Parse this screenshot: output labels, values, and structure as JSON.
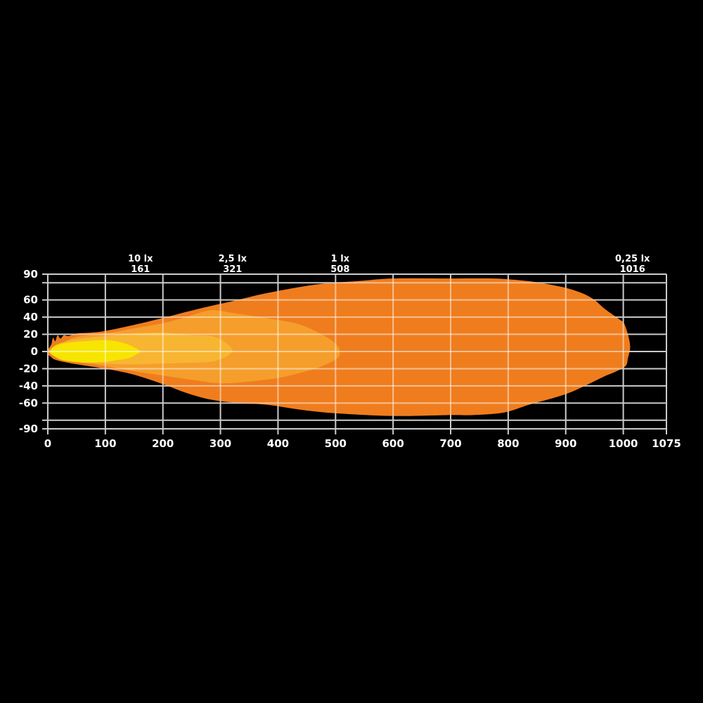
{
  "chart_data": {
    "type": "area",
    "title": "",
    "xlabel": "",
    "ylabel": "",
    "xlim": [
      0,
      1075
    ],
    "ylim": [
      -90,
      90
    ],
    "grid": true,
    "background": "#000000",
    "grid_color": "#cbcbcb",
    "grid_overlay_color": "rgba(255,255,255,0.5)",
    "text_color": "#ffffff",
    "x_grid_values": [
      0,
      100,
      200,
      300,
      400,
      500,
      600,
      700,
      800,
      900,
      1000,
      1075
    ],
    "y_grid_values": [
      -90,
      -80,
      -60,
      -40,
      -20,
      0,
      20,
      40,
      60,
      80,
      90
    ],
    "x_tick_labels": [
      {
        "v": 0,
        "label": "0"
      },
      {
        "v": 100,
        "label": "100"
      },
      {
        "v": 200,
        "label": "200"
      },
      {
        "v": 300,
        "label": "300"
      },
      {
        "v": 400,
        "label": "400"
      },
      {
        "v": 500,
        "label": "500"
      },
      {
        "v": 600,
        "label": "600"
      },
      {
        "v": 700,
        "label": "700"
      },
      {
        "v": 800,
        "label": "800"
      },
      {
        "v": 900,
        "label": "900"
      },
      {
        "v": 1000,
        "label": "1000"
      },
      {
        "v": 1075,
        "label": "1075"
      }
    ],
    "y_tick_labels": [
      {
        "v": 90,
        "label": "90"
      },
      {
        "v": 60,
        "label": "60"
      },
      {
        "v": 40,
        "label": "40"
      },
      {
        "v": 20,
        "label": "20"
      },
      {
        "v": 0,
        "label": "0"
      },
      {
        "v": -20,
        "label": "-20"
      },
      {
        "v": -40,
        "label": "-40"
      },
      {
        "v": -60,
        "label": "-60"
      },
      {
        "v": -90,
        "label": "-90"
      }
    ],
    "lux_markers": [
      {
        "label": "10 lx",
        "distance_label": "161",
        "distance": 161
      },
      {
        "label": "2,5 lx",
        "distance_label": "321",
        "distance": 321
      },
      {
        "label": "1 lx",
        "distance_label": "508",
        "distance": 508
      },
      {
        "label": "0,25 lx",
        "distance_label": "1016",
        "distance": 1016
      }
    ],
    "contours": [
      {
        "name": "contour-0-25-lx",
        "lux": 0.25,
        "max_distance": 1016,
        "color": "#ef7d1e",
        "points": [
          [
            0,
            2
          ],
          [
            6,
            8
          ],
          [
            9,
            16
          ],
          [
            13,
            12
          ],
          [
            17,
            19
          ],
          [
            22,
            15
          ],
          [
            28,
            19
          ],
          [
            36,
            18
          ],
          [
            51,
            21
          ],
          [
            75,
            22
          ],
          [
            100,
            24
          ],
          [
            150,
            31
          ],
          [
            200,
            39
          ],
          [
            240,
            46
          ],
          [
            283,
            53
          ],
          [
            330,
            60
          ],
          [
            381,
            68
          ],
          [
            466,
            78
          ],
          [
            540,
            82
          ],
          [
            600,
            85
          ],
          [
            700,
            85
          ],
          [
            772,
            85
          ],
          [
            800,
            84
          ],
          [
            845,
            81
          ],
          [
            894,
            75
          ],
          [
            928,
            68
          ],
          [
            950,
            60
          ],
          [
            967,
            50
          ],
          [
            992,
            38
          ],
          [
            1001,
            33
          ],
          [
            1008,
            20
          ],
          [
            1012,
            5
          ],
          [
            1008,
            -8
          ],
          [
            1004,
            -17
          ],
          [
            985,
            -24
          ],
          [
            967,
            -29
          ],
          [
            930,
            -41
          ],
          [
            894,
            -51
          ],
          [
            836,
            -62
          ],
          [
            793,
            -71
          ],
          [
            740,
            -74
          ],
          [
            700,
            -74
          ],
          [
            601,
            -75
          ],
          [
            503,
            -72
          ],
          [
            442,
            -68
          ],
          [
            381,
            -62
          ],
          [
            332,
            -60
          ],
          [
            283,
            -56
          ],
          [
            240,
            -48
          ],
          [
            200,
            -38
          ],
          [
            150,
            -27
          ],
          [
            100,
            -20
          ],
          [
            51,
            -15
          ],
          [
            15,
            -10
          ],
          [
            5,
            -6
          ],
          [
            0,
            -3
          ]
        ]
      },
      {
        "name": "contour-1-lx",
        "lux": 1,
        "max_distance": 508,
        "color": "#f59e2b",
        "points": [
          [
            3,
            2
          ],
          [
            20,
            8
          ],
          [
            50,
            17
          ],
          [
            100,
            21
          ],
          [
            150,
            27
          ],
          [
            200,
            33
          ],
          [
            240,
            40
          ],
          [
            283,
            48
          ],
          [
            320,
            45
          ],
          [
            350,
            42
          ],
          [
            406,
            36
          ],
          [
            440,
            31
          ],
          [
            470,
            22
          ],
          [
            495,
            12
          ],
          [
            507,
            2
          ],
          [
            503,
            -8
          ],
          [
            480,
            -16
          ],
          [
            454,
            -22
          ],
          [
            406,
            -30
          ],
          [
            350,
            -35
          ],
          [
            300,
            -37
          ],
          [
            250,
            -33
          ],
          [
            200,
            -28
          ],
          [
            150,
            -23
          ],
          [
            100,
            -17
          ],
          [
            50,
            -12
          ],
          [
            20,
            -6
          ],
          [
            3,
            -2
          ]
        ]
      },
      {
        "name": "contour-2-5-lx",
        "lux": 2.5,
        "max_distance": 321,
        "color": "#f8b532",
        "points": [
          [
            2,
            1
          ],
          [
            15,
            8
          ],
          [
            40,
            13
          ],
          [
            70,
            16
          ],
          [
            100,
            18
          ],
          [
            150,
            21
          ],
          [
            200,
            22
          ],
          [
            250,
            19
          ],
          [
            283,
            18
          ],
          [
            300,
            14
          ],
          [
            313,
            8
          ],
          [
            321,
            1
          ],
          [
            313,
            -5
          ],
          [
            300,
            -9
          ],
          [
            283,
            -12
          ],
          [
            250,
            -13
          ],
          [
            200,
            -14
          ],
          [
            150,
            -15
          ],
          [
            100,
            -14
          ],
          [
            60,
            -12
          ],
          [
            25,
            -9
          ],
          [
            8,
            -4
          ],
          [
            2,
            -1
          ]
        ]
      },
      {
        "name": "contour-10-lx",
        "lux": 10,
        "max_distance": 161,
        "color": "#f7e500",
        "points": [
          [
            5,
            1
          ],
          [
            12,
            6
          ],
          [
            25,
            9
          ],
          [
            45,
            11
          ],
          [
            65,
            12
          ],
          [
            85,
            13
          ],
          [
            105,
            13
          ],
          [
            125,
            11
          ],
          [
            140,
            8
          ],
          [
            152,
            4
          ],
          [
            161,
            0
          ],
          [
            152,
            -4
          ],
          [
            140,
            -8
          ],
          [
            120,
            -10
          ],
          [
            100,
            -12
          ],
          [
            70,
            -13
          ],
          [
            45,
            -12
          ],
          [
            25,
            -10
          ],
          [
            12,
            -6
          ],
          [
            5,
            -2
          ]
        ]
      }
    ]
  }
}
